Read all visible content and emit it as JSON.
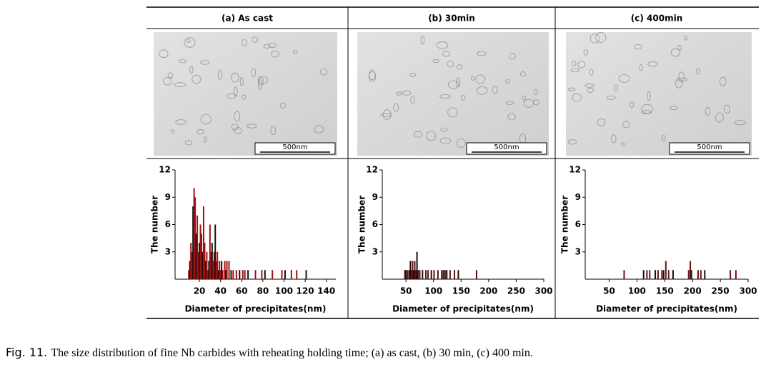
{
  "chart_data": [
    {
      "type": "bar",
      "title": "(a) As cast",
      "annotation": "500nm",
      "x_label": "Diameter of precipitates(nm)",
      "y_label": "The number",
      "color": "#a01010",
      "x": [
        10,
        11,
        12,
        13,
        14,
        15,
        16,
        17,
        18,
        19,
        20,
        21,
        22,
        23,
        24,
        25,
        26,
        27,
        28,
        29,
        30,
        31,
        32,
        33,
        34,
        35,
        36,
        37,
        38,
        39,
        40,
        41,
        42,
        44,
        45,
        46,
        48,
        50,
        52,
        55,
        58,
        61,
        63,
        66,
        73,
        79,
        82,
        89,
        98,
        101,
        107,
        112,
        121
      ],
      "values": [
        1,
        2,
        4,
        3,
        8,
        10,
        9,
        5,
        7,
        3,
        4,
        6,
        5,
        3,
        8,
        4,
        2,
        3,
        1,
        2,
        6,
        3,
        4,
        2,
        3,
        6,
        2,
        3,
        1,
        2,
        1,
        2,
        1,
        2,
        1,
        2,
        2,
        1,
        1,
        1,
        1,
        1,
        1,
        1,
        1,
        1,
        1,
        1,
        1,
        1,
        1,
        1,
        1
      ],
      "xlim": [
        -3,
        149
      ],
      "xticks": [
        20,
        40,
        60,
        80,
        100,
        120,
        140
      ],
      "ylim": [
        0,
        12
      ],
      "yticks": [
        3,
        6,
        9,
        12
      ]
    },
    {
      "type": "bar",
      "title": "(b) 30min",
      "annotation": "500nm",
      "x_label": "Diameter of precipitates(nm)",
      "y_label": "The number",
      "color": "#5a1010",
      "x": [
        48,
        50,
        53,
        56,
        58,
        60,
        62,
        64,
        66,
        68,
        70,
        72,
        75,
        80,
        86,
        90,
        96,
        101,
        108,
        115,
        118,
        121,
        124,
        130,
        138,
        145,
        178
      ],
      "values": [
        1,
        1,
        1,
        1,
        2,
        1,
        2,
        1,
        2,
        1,
        3,
        1,
        1,
        1,
        1,
        1,
        1,
        1,
        1,
        1,
        1,
        1,
        1,
        1,
        1,
        1,
        1
      ],
      "xlim": [
        7,
        300
      ],
      "xticks": [
        50,
        100,
        150,
        200,
        250,
        300
      ],
      "ylim": [
        0,
        12
      ],
      "yticks": [
        3,
        6,
        9,
        12
      ]
    },
    {
      "type": "bar",
      "title": "(c) 400min",
      "annotation": "500nm",
      "x_label": "Diameter of precipitates(nm)",
      "y_label": "The number",
      "color": "#6a1515",
      "x": [
        77,
        112,
        118,
        123,
        133,
        138,
        145,
        148,
        152,
        157,
        165,
        193,
        196,
        198,
        210,
        215,
        222,
        268,
        278
      ],
      "values": [
        1,
        1,
        1,
        1,
        1,
        1,
        1,
        1,
        2,
        1,
        1,
        1,
        2,
        1,
        1,
        1,
        1,
        1,
        1
      ],
      "xlim": [
        7,
        300
      ],
      "xticks": [
        50,
        100,
        150,
        200,
        250,
        300
      ],
      "ylim": [
        0,
        12
      ],
      "yticks": [
        3,
        6,
        9,
        12
      ]
    }
  ],
  "caption_label": "Fig. 11.",
  "caption": "The size distribution of fine Nb carbides with reheating holding time; (a) as cast, (b) 30 min, (c) 400 min."
}
